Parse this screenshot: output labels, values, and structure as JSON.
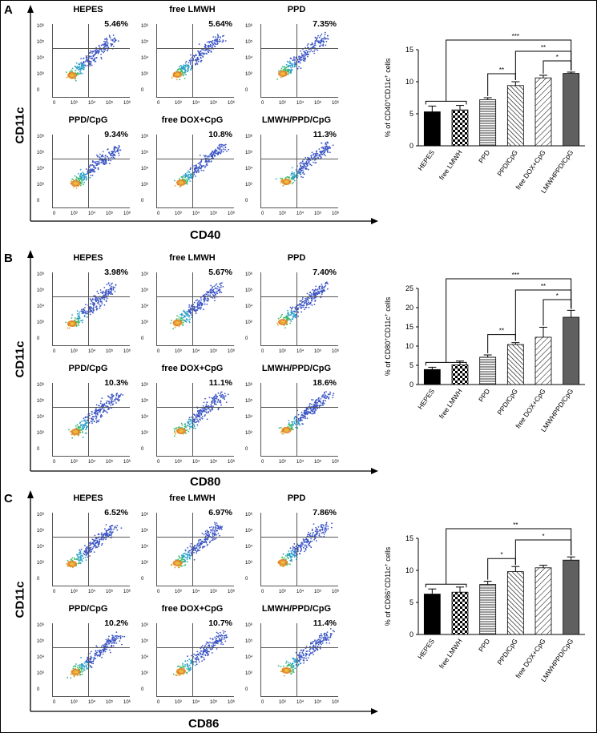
{
  "panels": [
    {
      "letter": "A",
      "ylabel": "CD11c",
      "xlabel": "CD40",
      "plots": [
        {
          "title": "HEPES",
          "pct": "5.46%"
        },
        {
          "title": "free LMWH",
          "pct": "5.64%"
        },
        {
          "title": "PPD",
          "pct": "7.35%"
        },
        {
          "title": "PPD/CpG",
          "pct": "9.34%"
        },
        {
          "title": "free DOX+CpG",
          "pct": "10.8%"
        },
        {
          "title": "LMWH/PPD/CpG",
          "pct": "11.3%"
        }
      ]
    },
    {
      "letter": "B",
      "ylabel": "CD11c",
      "xlabel": "CD80",
      "plots": [
        {
          "title": "HEPES",
          "pct": "3.98%"
        },
        {
          "title": "free LMWH",
          "pct": "5.67%"
        },
        {
          "title": "PPD",
          "pct": "7.40%"
        },
        {
          "title": "PPD/CpG",
          "pct": "10.3%"
        },
        {
          "title": "free DOX+CpG",
          "pct": "11.1%"
        },
        {
          "title": "LMWH/PPD/CpG",
          "pct": "18.6%"
        }
      ]
    },
    {
      "letter": "C",
      "ylabel": "CD11c",
      "xlabel": "CD86",
      "plots": [
        {
          "title": "HEPES",
          "pct": "6.52%"
        },
        {
          "title": "free LMWH",
          "pct": "6.97%"
        },
        {
          "title": "PPD",
          "pct": "7.86%"
        },
        {
          "title": "PPD/CpG",
          "pct": "10.2%"
        },
        {
          "title": "free DOX+CpG",
          "pct": "10.7%"
        },
        {
          "title": "LMWH/PPD/CpG",
          "pct": "11.4%"
        }
      ]
    }
  ],
  "flow_axis": {
    "y_ticks": [
      "10⁶",
      "10⁵",
      "10⁴",
      "10³",
      "0"
    ],
    "x_ticks": [
      "0",
      "10³",
      "10⁴",
      "10⁵",
      "10⁶"
    ]
  },
  "chart_data": [
    {
      "type": "bar",
      "ylabel_parts": [
        "% of CD40",
        "+",
        "CD11c",
        "+",
        " cells"
      ],
      "categories": [
        "HEPES",
        "free LMWH",
        "PPD",
        "PPD/CpG",
        "free DOX+CpG",
        "LMWHPPD/CpG"
      ],
      "values": [
        5.3,
        5.6,
        7.2,
        9.4,
        10.6,
        11.3
      ],
      "errors": [
        0.9,
        0.7,
        0.3,
        0.6,
        0.4,
        0.2
      ],
      "ylim": [
        0,
        15
      ],
      "yticks": [
        0,
        5,
        10,
        15
      ],
      "significance": [
        {
          "from": 0,
          "to": 5,
          "label": "***"
        },
        {
          "from": 3,
          "to": 5,
          "label": "**"
        },
        {
          "from": 2,
          "to": 3,
          "label": "**"
        },
        {
          "from": 4,
          "to": 5,
          "label": "*"
        }
      ]
    },
    {
      "type": "bar",
      "ylabel_parts": [
        "% of CD80",
        "+",
        "CD11c",
        "+",
        " cells"
      ],
      "categories": [
        "HEPES",
        "free LMWH",
        "PPD",
        "PPD/CpG",
        "free DOX+CpG",
        "LMWHPPD/CpG"
      ],
      "values": [
        3.9,
        5.1,
        7.1,
        10.4,
        12.3,
        17.5
      ],
      "errors": [
        0.6,
        1.0,
        0.6,
        0.5,
        2.6,
        1.8
      ],
      "ylim": [
        0,
        25
      ],
      "yticks": [
        0,
        5,
        10,
        15,
        20,
        25
      ],
      "significance": [
        {
          "from": 0,
          "to": 5,
          "label": "***"
        },
        {
          "from": 3,
          "to": 5,
          "label": "**"
        },
        {
          "from": 2,
          "to": 3,
          "label": "**"
        },
        {
          "from": 4,
          "to": 5,
          "label": "*"
        }
      ]
    },
    {
      "type": "bar",
      "ylabel_parts": [
        "% of CD86",
        "+",
        "CD11c",
        "+",
        " cells"
      ],
      "categories": [
        "HEPES",
        "free LMWH",
        "PPD",
        "PPD/CpG",
        "free DOX+CpG",
        "LMWHPPD/CpG"
      ],
      "values": [
        6.3,
        6.6,
        7.8,
        9.8,
        10.4,
        11.6
      ],
      "errors": [
        0.8,
        0.8,
        0.5,
        0.8,
        0.4,
        0.5
      ],
      "ylim": [
        0,
        15
      ],
      "yticks": [
        0,
        5,
        10,
        15
      ],
      "significance": [
        {
          "from": 0,
          "to": 5,
          "label": "**"
        },
        {
          "from": 3,
          "to": 5,
          "label": "*"
        },
        {
          "from": 2,
          "to": 3,
          "label": "*"
        }
      ]
    }
  ]
}
